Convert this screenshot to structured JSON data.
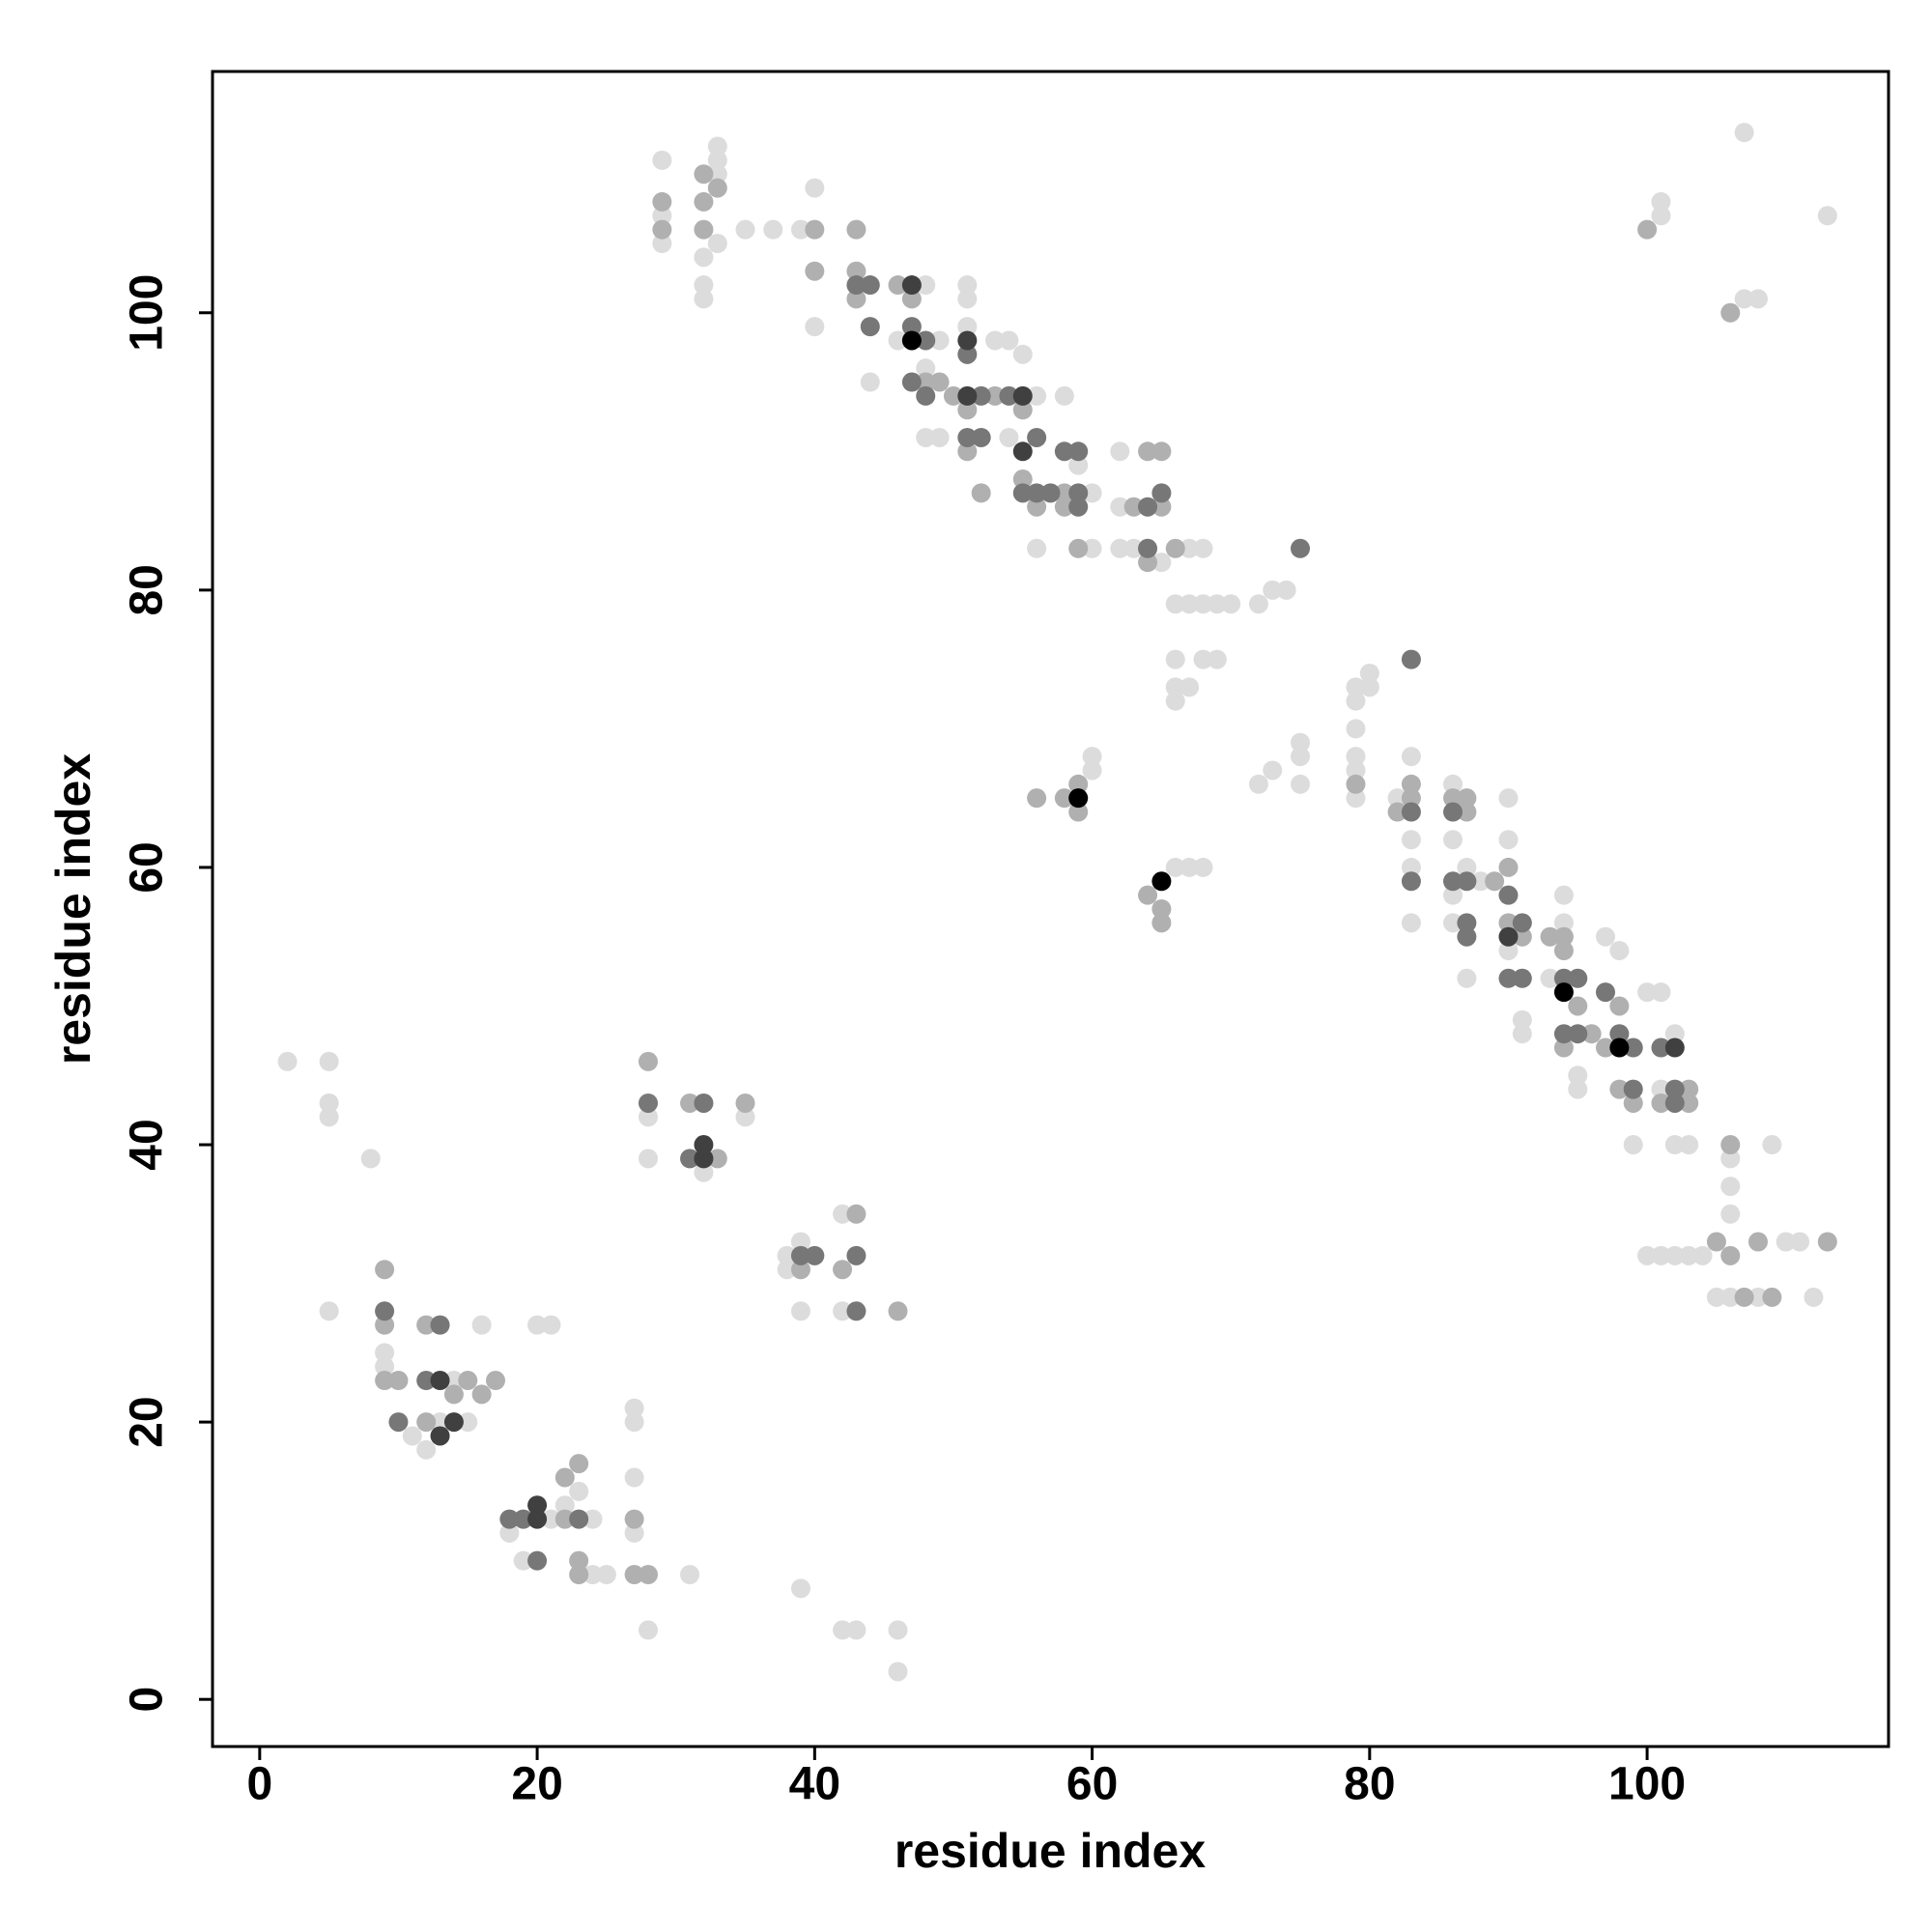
{
  "chart_data": {
    "type": "scatter",
    "x_label": "residue index",
    "y_label": "residue index",
    "xlim": [
      -3.4,
      117.4
    ],
    "ylim": [
      -3.4,
      117.4
    ],
    "xticks": [
      0,
      20,
      40,
      60,
      80,
      100
    ],
    "yticks": [
      0,
      20,
      40,
      60,
      80,
      100
    ],
    "series": [
      {
        "color": "#dcdcdc",
        "x": [
          29,
          29,
          29,
          32,
          32,
          32,
          33,
          33,
          33,
          33,
          35,
          37,
          39,
          40,
          40,
          44,
          46,
          48,
          48,
          48,
          49,
          49,
          51,
          51,
          51,
          53,
          54,
          54,
          55,
          56,
          56,
          58,
          59,
          60,
          60,
          62,
          62,
          62,
          63,
          64,
          65,
          66,
          67,
          68,
          69,
          70,
          72,
          73,
          74,
          66,
          68,
          69,
          66,
          67,
          66,
          67,
          68,
          60,
          60,
          66,
          67,
          68,
          72,
          73,
          75,
          75,
          75,
          79,
          80,
          80,
          79,
          79,
          79,
          79,
          79,
          82,
          83,
          83,
          83,
          83,
          86,
          86,
          86,
          86,
          87,
          87,
          88,
          90,
          90,
          90,
          91,
          91,
          93,
          94,
          94,
          95,
          95,
          97,
          98,
          99,
          100,
          101,
          101,
          102,
          102,
          103,
          100,
          101,
          102,
          103,
          104,
          105,
          106,
          106,
          106,
          106,
          108,
          109,
          110,
          111,
          112,
          101,
          101,
          107,
          108,
          107,
          113,
          2,
          5,
          5,
          5,
          8,
          5,
          9,
          9,
          11,
          12,
          13,
          15,
          16,
          14,
          18,
          19,
          20,
          21,
          21,
          22,
          23,
          24,
          24,
          25,
          27,
          27,
          27,
          27,
          28,
          28,
          28,
          31,
          32,
          32,
          35,
          38,
          38,
          39,
          39,
          39,
          42,
          42,
          42,
          43,
          46,
          46
        ],
        "y": [
          111,
          107,
          105,
          104,
          102,
          101,
          110,
          111,
          112,
          105,
          106,
          106,
          106,
          109,
          99,
          95,
          98,
          102,
          96,
          91,
          91,
          98,
          102,
          101,
          99,
          98,
          91,
          98,
          97,
          94,
          83,
          94,
          89,
          87,
          83,
          90,
          86,
          83,
          83,
          83,
          82,
          79,
          79,
          79,
          79,
          79,
          79,
          80,
          80,
          75,
          75,
          75,
          73,
          73,
          72,
          83,
          83,
          68,
          67,
          60,
          60,
          60,
          66,
          67,
          69,
          68,
          66,
          73,
          74,
          73,
          72,
          70,
          68,
          67,
          65,
          65,
          68,
          62,
          60,
          56,
          66,
          62,
          58,
          56,
          60,
          52,
          59,
          65,
          62,
          54,
          49,
          48,
          52,
          58,
          56,
          45,
          44,
          55,
          54,
          40,
          51,
          51,
          44,
          48,
          40,
          40,
          32,
          32,
          32,
          32,
          32,
          29,
          29,
          35,
          37,
          39,
          29,
          40,
          33,
          33,
          29,
          108,
          107,
          101,
          101,
          113,
          107,
          46,
          46,
          43,
          42,
          39,
          28,
          25,
          24,
          19,
          18,
          20,
          20,
          27,
          23,
          12,
          10,
          27,
          27,
          13,
          14,
          15,
          13,
          9,
          9,
          21,
          20,
          16,
          12,
          5,
          42,
          39,
          9,
          43,
          38,
          42,
          32,
          31,
          33,
          28,
          8,
          35,
          28,
          5,
          5,
          5,
          2
        ]
      },
      {
        "color": "#b0b0b0",
        "x": [
          29,
          29,
          32,
          32,
          33,
          32,
          40,
          40,
          43,
          43,
          43,
          46,
          47,
          48,
          49,
          50,
          51,
          51,
          52,
          53,
          55,
          55,
          56,
          58,
          58,
          59,
          63,
          64,
          65,
          66,
          64,
          65,
          9,
          9,
          9,
          10,
          12,
          14,
          15,
          16,
          17,
          12,
          22,
          23,
          23,
          23,
          27,
          27,
          28,
          22,
          28,
          31,
          33,
          35,
          39,
          42,
          43,
          79,
          82,
          83,
          83,
          86,
          87,
          87,
          89,
          90,
          90,
          91,
          93,
          94,
          94,
          95,
          94,
          96,
          97,
          98,
          98,
          99,
          101,
          103,
          103,
          106,
          105,
          106,
          107,
          109,
          108,
          113,
          100,
          106,
          59,
          59,
          58,
          56,
          64,
          65,
          65,
          46
        ],
        "y": [
          108,
          106,
          106,
          108,
          109,
          110,
          106,
          103,
          106,
          103,
          101,
          102,
          101,
          95,
          95,
          94,
          93,
          90,
          87,
          94,
          93,
          88,
          86,
          87,
          86,
          83,
          86,
          90,
          90,
          83,
          82,
          86,
          31,
          27,
          23,
          23,
          20,
          22,
          23,
          22,
          23,
          27,
          16,
          17,
          10,
          9,
          13,
          9,
          9,
          13,
          46,
          43,
          39,
          43,
          31,
          31,
          35,
          66,
          64,
          65,
          66,
          65,
          65,
          64,
          59,
          60,
          56,
          55,
          55,
          54,
          55,
          50,
          47,
          48,
          47,
          50,
          44,
          43,
          43,
          43,
          44,
          40,
          33,
          32,
          29,
          29,
          33,
          33,
          106,
          100,
          66,
          64,
          65,
          65,
          58,
          56,
          57,
          28
        ]
      },
      {
        "color": "#777777",
        "x": [
          43,
          44,
          44,
          47,
          47,
          48,
          48,
          51,
          52,
          52,
          54,
          56,
          56,
          58,
          59,
          59,
          59,
          64,
          65,
          64,
          86,
          87,
          87,
          86,
          87,
          90,
          91,
          91,
          94,
          94,
          95,
          95,
          97,
          98,
          99,
          99,
          101,
          102,
          102,
          9,
          10,
          13,
          12,
          18,
          19,
          23,
          20,
          31,
          32,
          28,
          39,
          40,
          43,
          43,
          83,
          83,
          83,
          75,
          57,
          51,
          55,
          90
        ],
        "y": [
          102,
          102,
          99,
          99,
          95,
          94,
          98,
          97,
          94,
          91,
          94,
          87,
          91,
          90,
          90,
          87,
          86,
          86,
          87,
          83,
          64,
          56,
          55,
          59,
          59,
          52,
          52,
          56,
          48,
          52,
          52,
          48,
          51,
          48,
          47,
          44,
          47,
          43,
          44,
          28,
          20,
          27,
          23,
          13,
          13,
          13,
          10,
          39,
          43,
          43,
          32,
          32,
          32,
          28,
          64,
          59,
          75,
          83,
          87,
          91,
          87,
          58
        ]
      },
      {
        "color": "#404040",
        "x": [
          47,
          51,
          51,
          55,
          55,
          13,
          13,
          20,
          20,
          14,
          90,
          102,
          32,
          32
        ],
        "y": [
          102,
          98,
          94,
          94,
          90,
          23,
          19,
          14,
          13,
          20,
          55,
          47,
          40,
          39
        ]
      },
      {
        "color": "#000000",
        "x": [
          59,
          65,
          47,
          94,
          98
        ],
        "y": [
          65,
          59,
          98,
          51,
          47
        ]
      }
    ]
  }
}
